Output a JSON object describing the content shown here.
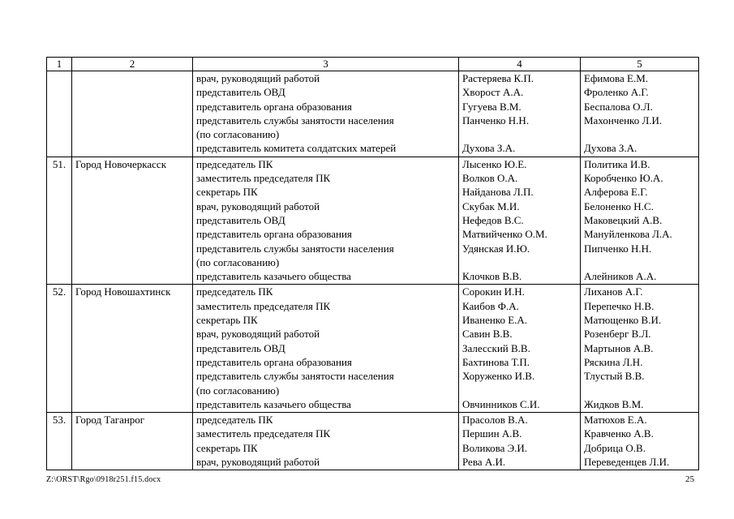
{
  "footer": {
    "file_path": "Z:\\ORST\\Rgo\\0918r251.f15.docx",
    "page_number": "25"
  },
  "table": {
    "headers": [
      "1",
      "2",
      "3",
      "4",
      "5"
    ],
    "rows": [
      {
        "num": "",
        "city": "",
        "lines": [
          {
            "role": "врач, руководящий работой",
            "c4": "Растеряева К.П.",
            "c5": "Ефимова Е.М."
          },
          {
            "role": "представитель ОВД",
            "c4": "Хворост А.А.",
            "c5": "Фроленко А.Г."
          },
          {
            "role": "представитель органа образования",
            "c4": "Гугуева В.М.",
            "c5": "Беспалова О.Л."
          },
          {
            "role": "представитель службы занятости населения",
            "c4": "Панченко Н.Н.",
            "c5": "Махонченко Л.И."
          },
          {
            "role": "(по согласованию)",
            "c4": "",
            "c5": ""
          },
          {
            "role": "представитель комитета солдатских матерей",
            "c4": "Духова З.А.",
            "c5": "Духова З.А."
          }
        ]
      },
      {
        "num": "51.",
        "city": "Город Новочеркасск",
        "lines": [
          {
            "role": "председатель ПК",
            "c4": "Лысенко Ю.Е.",
            "c5": "Политика И.В."
          },
          {
            "role": "заместитель председателя ПК",
            "c4": "Волков О.А.",
            "c5": "Коробченко Ю.А."
          },
          {
            "role": "секретарь ПК",
            "c4": "Найданова Л.П.",
            "c5": "Алферова Е.Г."
          },
          {
            "role": "врач, руководящий работой",
            "c4": "Скубак М.И.",
            "c5": "Белоненко Н.С."
          },
          {
            "role": "представитель ОВД",
            "c4": "Нефедов В.С.",
            "c5": "Маковецкий А.В."
          },
          {
            "role": "представитель органа образования",
            "c4": "Матвийченко О.М.",
            "c5": "Мануйленкова Л.А."
          },
          {
            "role": "представитель службы занятости населения",
            "c4": "Удянская И.Ю.",
            "c5": "Пипченко Н.Н."
          },
          {
            "role": "(по согласованию)",
            "c4": "",
            "c5": ""
          },
          {
            "role": "представитель казачьего общества",
            "c4": "Клочков В.В.",
            "c5": "Алейников А.А."
          }
        ]
      },
      {
        "num": "52.",
        "city": "Город Новошахтинск",
        "lines": [
          {
            "role": "председатель ПК",
            "c4": "Сорокин И.Н.",
            "c5": "Лиханов А.Г."
          },
          {
            "role": "заместитель председателя ПК",
            "c4": "Каибов Ф.А.",
            "c5": "Перепечко Н.В."
          },
          {
            "role": "секретарь ПК",
            "c4": "Иваненко Е.А.",
            "c5": "Матющенко В.И."
          },
          {
            "role": "врач, руководящий работой",
            "c4": "Савин В.В.",
            "c5": "Розенберг В.Л."
          },
          {
            "role": "представитель ОВД",
            "c4": "Залесский В.В.",
            "c5": "Мартынов А.В."
          },
          {
            "role": "представитель органа образования",
            "c4": "Бахтинова Т.П.",
            "c5": "Ряскина Л.Н."
          },
          {
            "role": "представитель службы занятости населения",
            "c4": "Хоруженко И.В.",
            "c5": "Тлустый В.В."
          },
          {
            "role": "(по согласованию)",
            "c4": "",
            "c5": ""
          },
          {
            "role": "представитель казачьего общества",
            "c4": "Овчинников С.И.",
            "c5": "Жидков В.М."
          }
        ]
      },
      {
        "num": "53.",
        "city": "Город Таганрог",
        "lines": [
          {
            "role": "председатель ПК",
            "c4": "Прасолов В.А.",
            "c5": "Матюхов Е.А."
          },
          {
            "role": "заместитель председателя ПК",
            "c4": "Першин А.В.",
            "c5": "Кравченко А.В."
          },
          {
            "role": "секретарь ПК",
            "c4": "Воликова Э.И.",
            "c5": "Добрица О.В."
          },
          {
            "role": "врач, руководящий работой",
            "c4": "Рева А.И.",
            "c5": "Переведенцев Л.И."
          }
        ]
      }
    ]
  }
}
